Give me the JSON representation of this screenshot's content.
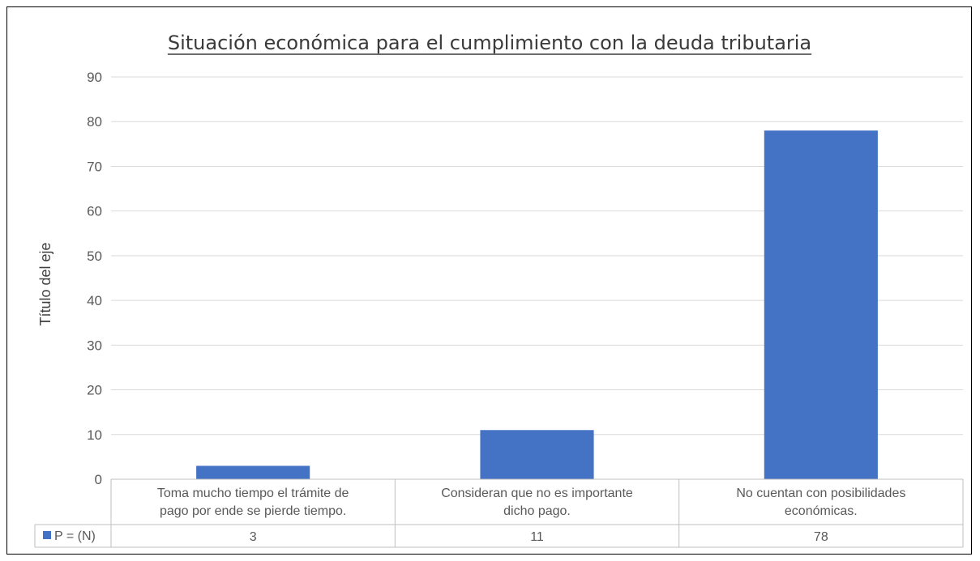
{
  "chart_data": {
    "type": "bar",
    "title": "Situación económica para el cumplimiento con la deuda tributaria",
    "ylabel": "Título del eje",
    "xlabel": "",
    "ylim": [
      0,
      90
    ],
    "yticks": [
      0,
      10,
      20,
      30,
      40,
      50,
      60,
      70,
      80,
      90
    ],
    "grid": true,
    "categories": [
      [
        "Toma mucho tiempo el trámite de",
        "pago por ende se pierde tiempo."
      ],
      [
        "Consideran que no es importante",
        "dicho pago."
      ],
      [
        "No cuentan con posibilidades",
        "económicas."
      ]
    ],
    "series": [
      {
        "name": "P = (N)",
        "values": [
          3,
          11,
          78
        ],
        "color": "#4472c4"
      }
    ],
    "data_table": true
  }
}
